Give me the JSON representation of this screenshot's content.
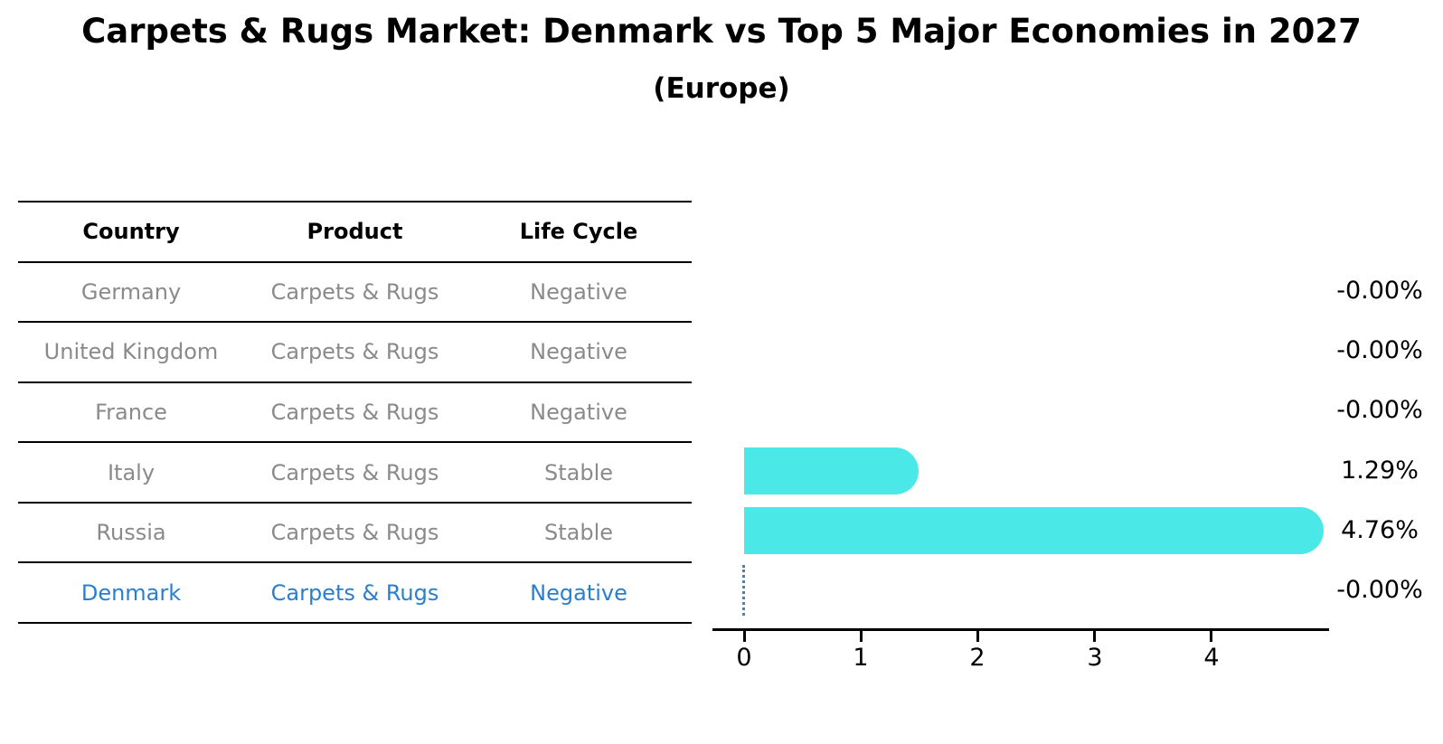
{
  "title": "Carpets & Rugs Market: Denmark vs Top 5 Major Economies in 2027",
  "subtitle": "(Europe)",
  "table": {
    "headers": [
      "Country",
      "Product",
      "Life Cycle"
    ],
    "rows": [
      {
        "country": "Germany",
        "product": "Carpets & Rugs",
        "life_cycle": "Negative",
        "highlight": false
      },
      {
        "country": "United Kingdom",
        "product": "Carpets & Rugs",
        "life_cycle": "Negative",
        "highlight": false
      },
      {
        "country": "France",
        "product": "Carpets & Rugs",
        "life_cycle": "Negative",
        "highlight": false
      },
      {
        "country": "Italy",
        "product": "Carpets & Rugs",
        "life_cycle": "Stable",
        "highlight": false
      },
      {
        "country": "Russia",
        "product": "Carpets & Rugs",
        "life_cycle": "Stable",
        "highlight": false
      },
      {
        "country": "Denmark",
        "product": "Carpets & Rugs",
        "life_cycle": "Negative",
        "highlight": true
      }
    ]
  },
  "chart_data": {
    "type": "bar",
    "orientation": "horizontal",
    "title": "Carpets & Rugs Market: Denmark vs Top 5 Major Economies in 2027",
    "subtitle": "(Europe)",
    "categories": [
      "Germany",
      "United Kingdom",
      "France",
      "Italy",
      "Russia",
      "Denmark"
    ],
    "values": [
      -0.0,
      -0.0,
      -0.0,
      1.29,
      4.76,
      -0.0
    ],
    "value_labels": [
      "-0.00%",
      "-0.00%",
      "-0.00%",
      "1.29%",
      "4.76%",
      "-0.00%"
    ],
    "x_ticks": [
      0,
      1,
      2,
      3,
      4
    ],
    "xlim": [
      0,
      5
    ],
    "grid": false,
    "legend": "none",
    "highlight_index": 5,
    "bar_color": "#4be8e8",
    "highlight_line_color": "#4682b4",
    "highlight_text_color": "#2a7ecf",
    "table_text_color": "#8a8a8a"
  }
}
